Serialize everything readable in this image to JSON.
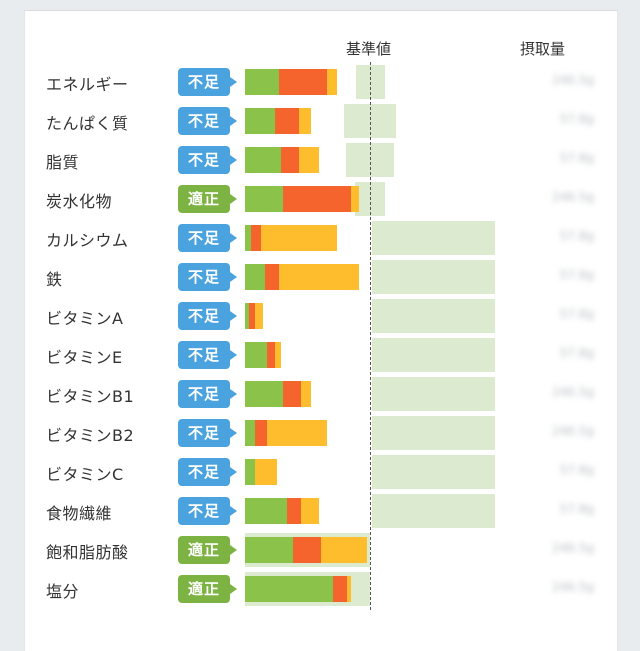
{
  "header": {
    "standard": "基準値",
    "intake": "摂取量"
  },
  "colors": {
    "low": "#4aa3df",
    "ok": "#7cb342",
    "green": "#8bc34a",
    "red": "#f4642c",
    "yellow": "#fdbd2c",
    "ref": "#dcebd0"
  },
  "rows": [
    {
      "name": "エネルギー",
      "status": "不足",
      "level": "low",
      "bar": [
        34,
        48,
        10
      ],
      "ref": [
        356,
        385
      ],
      "amount": "246.5g"
    },
    {
      "name": "たんぱく質",
      "status": "不足",
      "level": "low",
      "bar": [
        30,
        24,
        12
      ],
      "ref": [
        344,
        396
      ],
      "amount": "57.8g"
    },
    {
      "name": "脂質",
      "status": "不足",
      "level": "low",
      "bar": [
        36,
        18,
        20
      ],
      "ref": [
        346,
        394
      ],
      "amount": "57.8g"
    },
    {
      "name": "炭水化物",
      "status": "適正",
      "level": "ok",
      "bar": [
        38,
        68,
        8
      ],
      "ref": [
        355,
        385
      ],
      "amount": "246.5g"
    },
    {
      "name": "カルシウム",
      "status": "不足",
      "level": "low",
      "bar": [
        6,
        10,
        76
      ],
      "ref": [
        372,
        495
      ],
      "amount": "57.8g"
    },
    {
      "name": "鉄",
      "status": "不足",
      "level": "low",
      "bar": [
        20,
        14,
        80
      ],
      "ref": [
        372,
        495
      ],
      "amount": "57.8g"
    },
    {
      "name": "ビタミンA",
      "status": "不足",
      "level": "low",
      "bar": [
        4,
        6,
        8
      ],
      "ref": [
        372,
        495
      ],
      "amount": "57.8g"
    },
    {
      "name": "ビタミンE",
      "status": "不足",
      "level": "low",
      "bar": [
        22,
        8,
        6
      ],
      "ref": [
        372,
        495
      ],
      "amount": "57.8g"
    },
    {
      "name": "ビタミンB1",
      "status": "不足",
      "level": "low",
      "bar": [
        38,
        18,
        10
      ],
      "ref": [
        372,
        495
      ],
      "amount": "246.5g"
    },
    {
      "name": "ビタミンB2",
      "status": "不足",
      "level": "low",
      "bar": [
        10,
        12,
        60
      ],
      "ref": [
        372,
        495
      ],
      "amount": "246.5g"
    },
    {
      "name": "ビタミンC",
      "status": "不足",
      "level": "low",
      "bar": [
        10,
        0,
        22
      ],
      "ref": [
        372,
        495
      ],
      "amount": "57.8g"
    },
    {
      "name": "食物繊維",
      "status": "不足",
      "level": "low",
      "bar": [
        42,
        14,
        18
      ],
      "ref": [
        372,
        495
      ],
      "amount": "57.8g"
    },
    {
      "name": "飽和脂肪酸",
      "status": "適正",
      "level": "ok",
      "bar": [
        48,
        28,
        46
      ],
      "ref": [
        245,
        370
      ],
      "amount": "246.5g"
    },
    {
      "name": "塩分",
      "status": "適正",
      "level": "ok",
      "bar": [
        88,
        14,
        4
      ],
      "ref": [
        245,
        370
      ],
      "amount": "246.5g"
    }
  ]
}
